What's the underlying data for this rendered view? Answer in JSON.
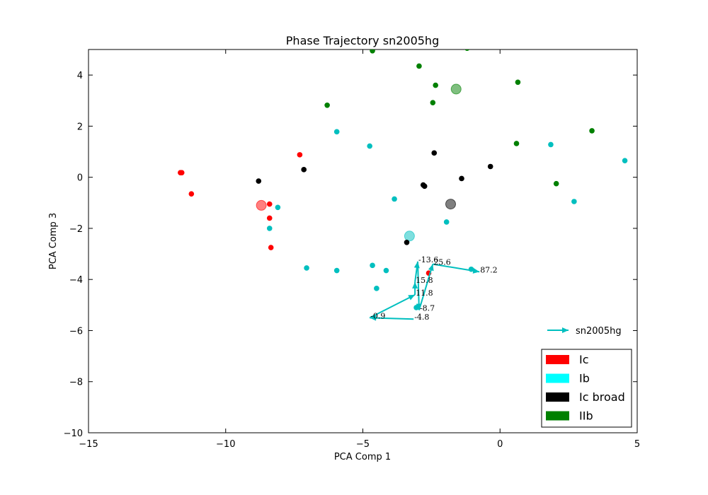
{
  "chart_data": {
    "type": "scatter",
    "title": "Phase Trajectory sn2005hg",
    "xlabel": "PCA Comp 1",
    "ylabel": "PCA Comp 3",
    "xlim": [
      -15,
      5
    ],
    "ylim": [
      -10,
      5
    ],
    "xticks": [
      -15,
      -10,
      -5,
      0,
      5
    ],
    "yticks": [
      -10,
      -8,
      -6,
      -4,
      -2,
      0,
      2,
      4
    ],
    "xtick_labels": [
      "−15",
      "−10",
      "−5",
      "0",
      "5"
    ],
    "ytick_labels": [
      "−10",
      "−8",
      "−6",
      "−4",
      "−2",
      "0",
      "2",
      "4"
    ],
    "grid": false,
    "series": [
      {
        "name": "Ic",
        "color": "#ff0000",
        "points": [
          [
            -11.65,
            0.18
          ],
          [
            -11.6,
            0.18
          ],
          [
            -11.25,
            -0.65
          ],
          [
            -7.3,
            0.88
          ],
          [
            -8.4,
            -1.05
          ],
          [
            -8.4,
            -1.6
          ],
          [
            -8.35,
            -2.75
          ],
          [
            -2.6,
            -3.75
          ]
        ],
        "centroid": [
          -8.7,
          -1.1
        ]
      },
      {
        "name": "Ib",
        "color": "#00bfbf",
        "points": [
          [
            -5.95,
            1.78
          ],
          [
            -4.75,
            1.22
          ],
          [
            -3.85,
            -0.85
          ],
          [
            -8.1,
            -1.18
          ],
          [
            -8.4,
            -2.0
          ],
          [
            -1.95,
            -1.75
          ],
          [
            -7.05,
            -3.55
          ],
          [
            -5.95,
            -3.65
          ],
          [
            -4.65,
            -3.45
          ],
          [
            -4.15,
            -3.65
          ],
          [
            -4.5,
            -4.35
          ],
          [
            -1.05,
            -3.6
          ],
          [
            -3.05,
            -5.1
          ],
          [
            1.85,
            1.28
          ],
          [
            2.7,
            -0.95
          ],
          [
            4.55,
            0.65
          ]
        ],
        "centroid": [
          -3.3,
          -2.3
        ]
      },
      {
        "name": "Ic broad",
        "color": "#000000",
        "points": [
          [
            -8.8,
            -0.15
          ],
          [
            -7.15,
            0.3
          ],
          [
            -2.4,
            0.95
          ],
          [
            -2.8,
            -0.3
          ],
          [
            -2.75,
            -0.35
          ],
          [
            -1.4,
            -0.05
          ],
          [
            -0.35,
            0.42
          ],
          [
            -3.4,
            -2.55
          ]
        ],
        "centroid": [
          -1.8,
          -1.05
        ]
      },
      {
        "name": "IIb",
        "color": "#008000",
        "points": [
          [
            -4.65,
            4.95
          ],
          [
            -1.2,
            5.05
          ],
          [
            -2.95,
            4.35
          ],
          [
            -2.35,
            3.6
          ],
          [
            0.65,
            3.72
          ],
          [
            -2.45,
            2.92
          ],
          [
            -6.3,
            2.82
          ],
          [
            0.6,
            1.32
          ],
          [
            3.35,
            1.82
          ],
          [
            2.05,
            -0.25
          ]
        ],
        "centroid": [
          -1.6,
          3.45
        ]
      }
    ],
    "trajectory": {
      "name": "sn2005hg",
      "color": "#00bfbf",
      "points": [
        {
          "x": -3.15,
          "y": -5.55,
          "label": "-4.8"
        },
        {
          "x": -4.75,
          "y": -5.5,
          "label": "-0.9"
        },
        {
          "x": -3.1,
          "y": -4.6,
          "label": "11.8"
        },
        {
          "x": -3.1,
          "y": -4.1,
          "label": "15.8"
        },
        {
          "x": -3.0,
          "y": -3.3,
          "label": "-13.6"
        },
        {
          "x": -2.95,
          "y": -5.2,
          "label": "-8.7"
        },
        {
          "x": -2.45,
          "y": -3.4,
          "label": "25.6"
        },
        {
          "x": -0.75,
          "y": -3.7,
          "label": "87.2"
        }
      ]
    },
    "legend": {
      "placement": "lower-right",
      "entries": [
        {
          "label": "Ic",
          "color": "#ff0000"
        },
        {
          "label": "Ib",
          "color": "#00ffff"
        },
        {
          "label": "Ic broad",
          "color": "#000000"
        },
        {
          "label": "IIb",
          "color": "#008000"
        }
      ],
      "trajectory_entry": {
        "label": "sn2005hg",
        "color": "#00bfbf"
      }
    }
  }
}
